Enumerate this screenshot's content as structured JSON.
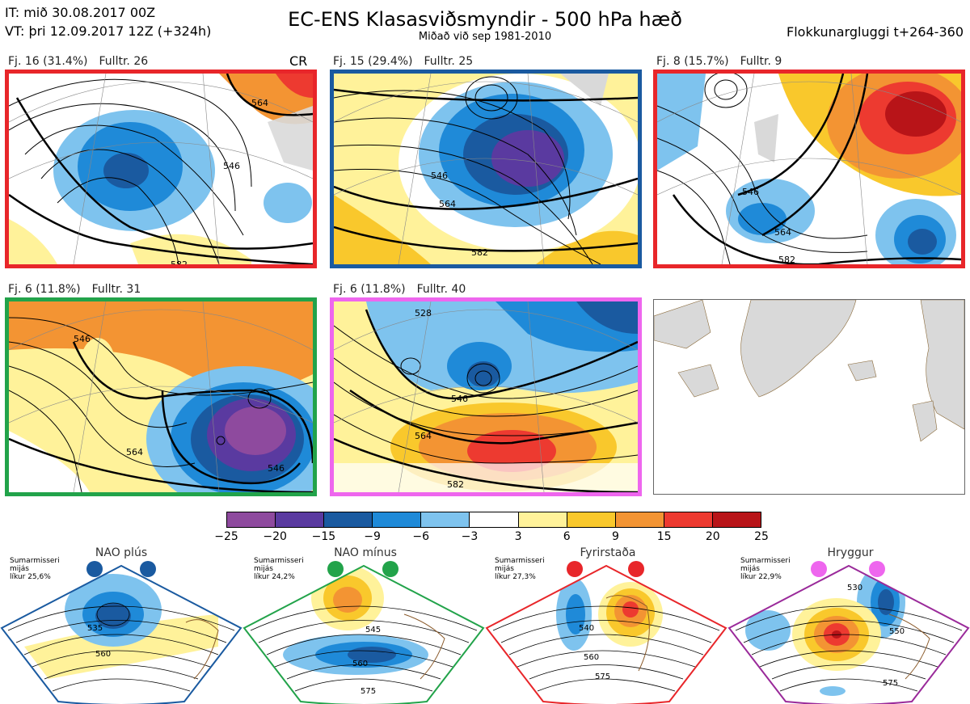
{
  "header": {
    "it": "IT: mið 30.08.2017 00Z",
    "vt": "VT: þri 12.09.2017 12Z  (+324h)",
    "title": "EC-ENS Klasasviðsmyndir - 500 hPa hæð",
    "subtitle": "Miðað við sep 1981-2010",
    "window": "Flokkunargluggi t+264-360"
  },
  "panels": [
    {
      "fj": "Fj. 16 (31.4%)",
      "fulltr": "Fulltr. 26",
      "tag": "CR",
      "border": "#e8262a"
    },
    {
      "fj": "Fj. 15 (29.4%)",
      "fulltr": "Fulltr. 25",
      "tag": "",
      "border": "#1a5aa0"
    },
    {
      "fj": "Fj. 8 (15.7%)",
      "fulltr": "Fulltr. 9",
      "tag": "",
      "border": "#e8262a"
    },
    {
      "fj": "Fj. 6 (11.8%)",
      "fulltr": "Fulltr. 31",
      "tag": "",
      "border": "#22a34a"
    },
    {
      "fj": "Fj. 6 (11.8%)",
      "fulltr": "Fulltr. 40",
      "tag": "",
      "border": "#ee66ee"
    }
  ],
  "contour_labels": [
    "546",
    "564",
    "582",
    "528"
  ],
  "colorbar": {
    "ticks": [
      "−25",
      "−20",
      "−15",
      "−9",
      "−6",
      "−3",
      "3",
      "6",
      "9",
      "15",
      "20",
      "25"
    ],
    "colors": [
      "#8e4a9e",
      "#5a3aa0",
      "#1a5aa0",
      "#1f8ad8",
      "#7ec3ee",
      "#ffffff",
      "#fff29a",
      "#f9c82c",
      "#f39433",
      "#ed3a30",
      "#b81418"
    ]
  },
  "regimes": [
    {
      "name": "NAO plús",
      "info": [
        "Sumarmisseri",
        "mijás",
        "líkur 25,6%"
      ],
      "color": "#1a5aa0",
      "labels": [
        "535",
        "560"
      ]
    },
    {
      "name": "NAO mínus",
      "info": [
        "Sumarmisseri",
        "mijás",
        "líkur 24,2%"
      ],
      "color": "#22a34a",
      "labels": [
        "545",
        "560",
        "575"
      ]
    },
    {
      "name": "Fyrirstaða",
      "info": [
        "Sumarmisseri",
        "mijás",
        "líkur 27,3%"
      ],
      "color": "#e8262a",
      "labels": [
        "540",
        "560",
        "575"
      ]
    },
    {
      "name": "Hryggur",
      "info": [
        "Sumarmisseri",
        "mijás",
        "líkur 22,9%"
      ],
      "color": "#9a2a9a",
      "labels": [
        "530",
        "550",
        "575"
      ]
    }
  ],
  "regime_dot_colors": [
    "#1a5aa0",
    "#22a34a",
    "#e8262a",
    "#ee66ee"
  ]
}
